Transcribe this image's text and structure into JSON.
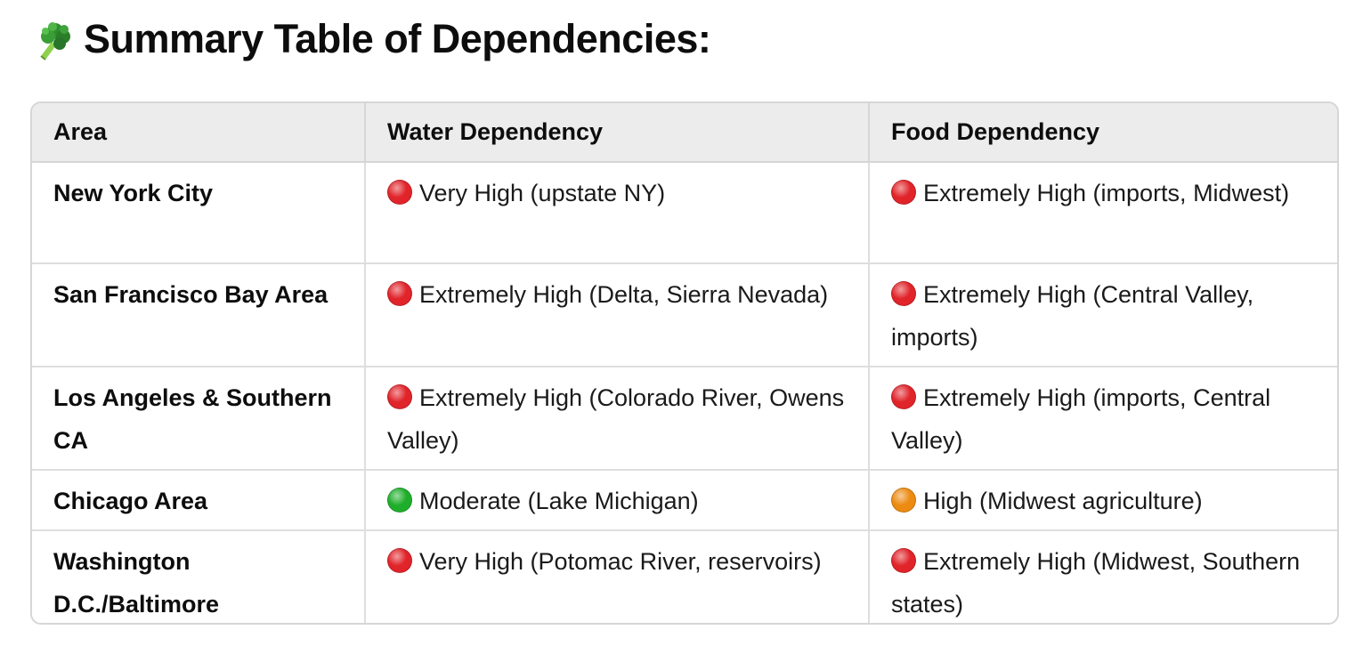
{
  "heading": {
    "icon": "broccoli-icon",
    "text": "Summary Table of Dependencies:"
  },
  "colors": {
    "red": "#e0242a",
    "green": "#1fae2b",
    "orange": "#ec8a12",
    "header_bg": "#ececec",
    "border": "#d6d6d6"
  },
  "table": {
    "headers": [
      "Area",
      "Water Dependency",
      "Food Dependency"
    ],
    "rows": [
      {
        "area": "New York City",
        "water": {
          "status": "red",
          "icon": "red-circle-icon",
          "text": "Very High (upstate NY)"
        },
        "food": {
          "status": "red",
          "icon": "red-circle-icon",
          "text": "Extremely High (imports, Midwest)"
        }
      },
      {
        "area": "San Francisco Bay Area",
        "water": {
          "status": "red",
          "icon": "red-circle-icon",
          "text": "Extremely High (Delta, Sierra Nevada)"
        },
        "food": {
          "status": "red",
          "icon": "red-circle-icon",
          "text": "Extremely High (Central Valley, imports)"
        }
      },
      {
        "area": "Los Angeles & Southern CA",
        "water": {
          "status": "red",
          "icon": "red-circle-icon",
          "text": "Extremely High (Colorado River, Owens Valley)"
        },
        "food": {
          "status": "red",
          "icon": "red-circle-icon",
          "text": "Extremely High (imports, Central Valley)"
        }
      },
      {
        "area": "Chicago Area",
        "water": {
          "status": "green",
          "icon": "green-circle-icon",
          "text": "Moderate (Lake Michigan)"
        },
        "food": {
          "status": "orange",
          "icon": "orange-circle-icon",
          "text": "High (Midwest agriculture)"
        }
      },
      {
        "area": "Washington D.C./Baltimore",
        "water": {
          "status": "red",
          "icon": "red-circle-icon",
          "text": "Very High (Potomac River, reservoirs)"
        },
        "food": {
          "status": "red",
          "icon": "red-circle-icon",
          "text": "Extremely High (Midwest, Southern states)"
        }
      }
    ]
  }
}
